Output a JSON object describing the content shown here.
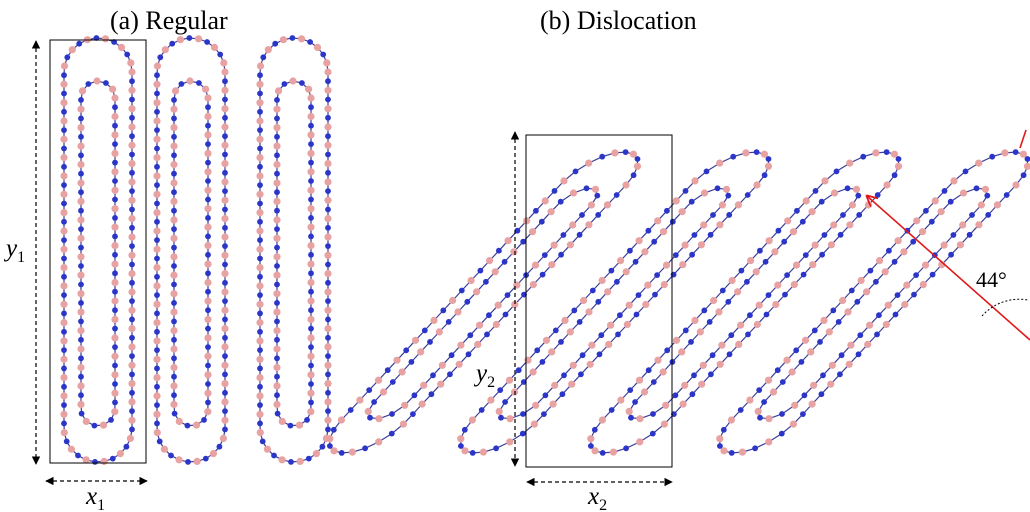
{
  "panels": [
    {
      "title": "(a) Regular",
      "width_label": "x",
      "width_sub": "1",
      "height_label": "y",
      "height_sub": "1"
    },
    {
      "title": "(b) Dislocation",
      "width_label": "x",
      "width_sub": "2",
      "height_label": "y",
      "height_sub": "2"
    }
  ],
  "annotation": {
    "angle_label": "44°"
  },
  "colors": {
    "atom_a": "#e8a2a2",
    "atom_b": "#2b35c8",
    "bond": "#3b3f9a",
    "arrow": "#e0191a",
    "frame": "#000000"
  }
}
